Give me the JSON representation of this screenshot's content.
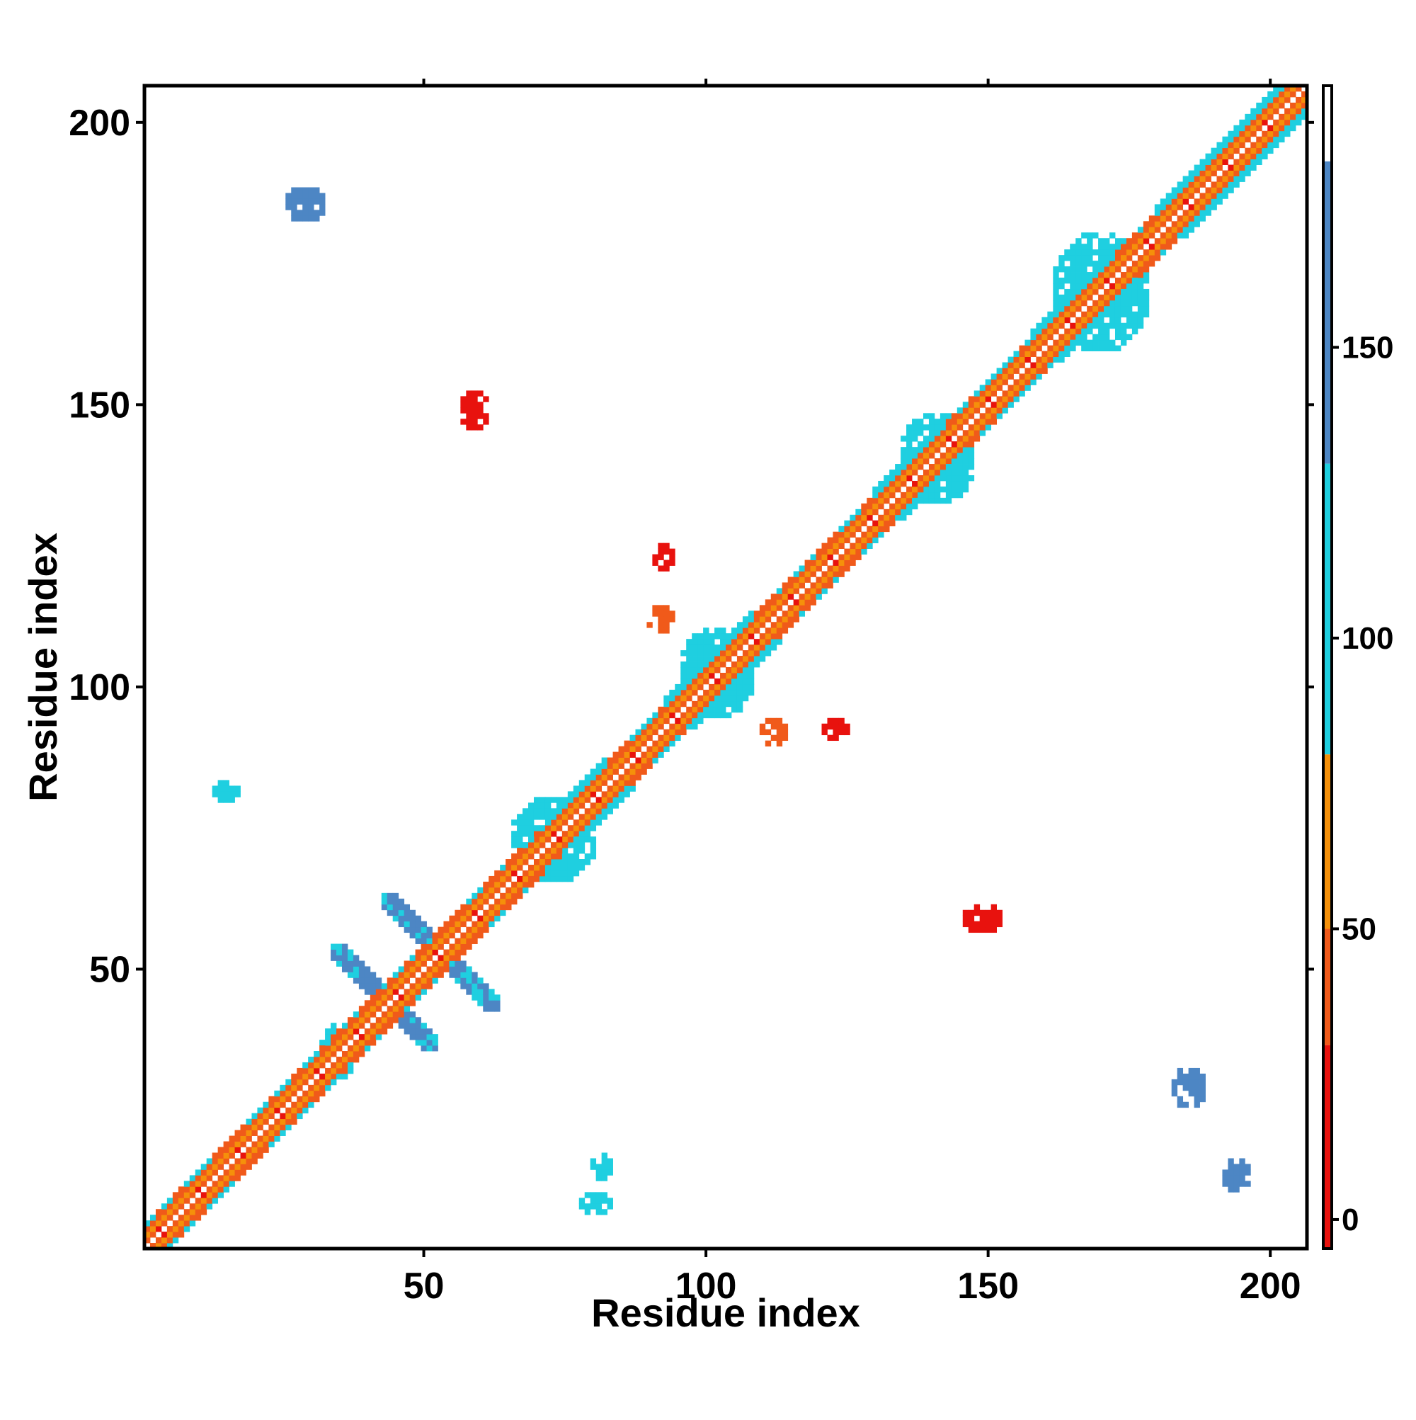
{
  "chart_data": {
    "type": "heatmap",
    "title": "",
    "xlabel": "Residue index",
    "ylabel": "Residue index",
    "xlim": [
      1,
      206
    ],
    "ylim": [
      1,
      206
    ],
    "x_ticks": [
      "50",
      "100",
      "150",
      "200"
    ],
    "y_ticks": [
      "50",
      "100",
      "150",
      "200"
    ],
    "colorbar": {
      "range": [
        -5,
        195
      ],
      "ticks": [
        "0",
        "50",
        "100",
        "150"
      ],
      "bins": [
        {
          "from": -5,
          "to": 30,
          "color": "#e8120e"
        },
        {
          "from": 30,
          "to": 50,
          "color": "#f05a1a"
        },
        {
          "from": 50,
          "to": 80,
          "color": "#f5900a"
        },
        {
          "from": 80,
          "to": 130,
          "color": "#1fcfe0"
        },
        {
          "from": 130,
          "to": 182,
          "color": "#4d86c4"
        },
        {
          "from": 182,
          "to": 195,
          "color": "#ffffff"
        }
      ]
    },
    "colors": {
      "red": "#e8120e",
      "orange": "#f05a1a",
      "amber": "#f5900a",
      "cyan": "#1fcfe0",
      "steel": "#4d86c4"
    },
    "diagonal_band": {
      "from": 1,
      "to": 206,
      "offsets": [
        {
          "offset": 0,
          "color": "white"
        },
        {
          "offset": 1,
          "color": "orange"
        },
        {
          "offset": 2,
          "color": "amber"
        },
        {
          "offset": 3,
          "color": "orange"
        },
        {
          "offset": 4,
          "color": "cyan"
        }
      ],
      "helix_segments": [
        [
          72,
          82
        ],
        [
          93,
          108
        ],
        [
          130,
          142
        ],
        [
          158,
          172
        ],
        [
          180,
          202
        ]
      ]
    },
    "contact_blocks": [
      {
        "x": [
          57,
          61
        ],
        "y": [
          146,
          152
        ],
        "color": "red"
      },
      {
        "x": [
          146,
          152
        ],
        "y": [
          57,
          61
        ],
        "color": "red"
      },
      {
        "x": [
          91,
          94
        ],
        "y": [
          121,
          125
        ],
        "color": "red"
      },
      {
        "x": [
          121,
          125
        ],
        "y": [
          91,
          94
        ],
        "color": "red"
      },
      {
        "x": [
          90,
          94
        ],
        "y": [
          110,
          114
        ],
        "color": "orange"
      },
      {
        "x": [
          110,
          114
        ],
        "y": [
          90,
          94
        ],
        "color": "orange"
      },
      {
        "x": [
          43,
          63
        ],
        "y": [
          43,
          63
        ],
        "color": "steel",
        "anti_diagonal": true
      },
      {
        "x": [
          34,
          52
        ],
        "y": [
          36,
          54
        ],
        "color": "steel",
        "anti_diagonal": true
      },
      {
        "x": [
          26,
          32
        ],
        "y": [
          183,
          188
        ],
        "color": "steel"
      },
      {
        "x": [
          183,
          188
        ],
        "y": [
          26,
          32
        ],
        "color": "steel"
      },
      {
        "x": [
          32,
          38
        ],
        "y": [
          31,
          40
        ],
        "color": "cyan"
      },
      {
        "x": [
          96,
          108
        ],
        "y": [
          95,
          110
        ],
        "color": "cyan"
      },
      {
        "x": [
          135,
          147
        ],
        "y": [
          133,
          148
        ],
        "color": "cyan"
      },
      {
        "x": [
          162,
          178
        ],
        "y": [
          160,
          180
        ],
        "color": "cyan"
      },
      {
        "x": [
          66,
          80
        ],
        "y": [
          66,
          80
        ],
        "color": "cyan"
      },
      {
        "x": [
          13,
          17
        ],
        "y": [
          80,
          83
        ],
        "color": "cyan"
      },
      {
        "x": [
          80,
          83
        ],
        "y": [
          13,
          17
        ],
        "color": "cyan"
      },
      {
        "x": [
          78,
          83
        ],
        "y": [
          7,
          10
        ],
        "color": "cyan"
      },
      {
        "x": [
          192,
          196
        ],
        "y": [
          11,
          16
        ],
        "color": "steel"
      }
    ]
  }
}
